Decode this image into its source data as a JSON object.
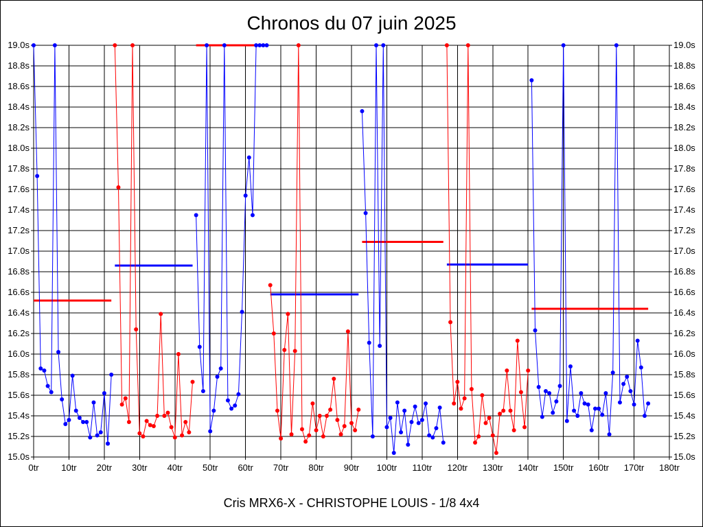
{
  "page": {
    "title": "Chronos du 07 juin 2025",
    "footer": "Cris MRX6-X - CHRISTOPHE LOUIS - 1/8 4x4"
  },
  "chart_data": {
    "type": "line",
    "title": "Chronos du 07 juin 2025",
    "xlabel": "",
    "ylabel": "",
    "xlim": [
      0,
      180
    ],
    "ylim": [
      15.0,
      19.0
    ],
    "grid": true,
    "x_ticks": [
      "0tr",
      "10tr",
      "20tr",
      "30tr",
      "40tr",
      "50tr",
      "60tr",
      "70tr",
      "80tr",
      "90tr",
      "100tr",
      "110tr",
      "120tr",
      "130tr",
      "140tr",
      "150tr",
      "160tr",
      "170tr",
      "180tr"
    ],
    "y_ticks": [
      "15.0s",
      "15.2s",
      "15.4s",
      "15.6s",
      "15.8s",
      "16.0s",
      "16.2s",
      "16.4s",
      "16.6s",
      "16.8s",
      "17.0s",
      "17.2s",
      "17.4s",
      "17.6s",
      "17.8s",
      "18.0s",
      "18.2s",
      "18.4s",
      "18.6s",
      "18.8s",
      "19.0s"
    ],
    "colors": {
      "blue": "#0000ff",
      "red": "#ff0000",
      "grid": "#000000"
    },
    "series": [
      {
        "color": "blue",
        "x": [
          0,
          1,
          2,
          3,
          4,
          5,
          6,
          7,
          8,
          9,
          10,
          11,
          12,
          13,
          14,
          15,
          16,
          17,
          18,
          19,
          20,
          21
        ],
        "y": [
          19.0,
          17.73,
          15.86,
          15.84,
          15.69,
          15.63,
          19.0,
          16.02,
          15.56,
          15.32,
          15.36,
          15.79,
          15.45,
          15.38,
          15.34,
          15.34,
          15.19,
          15.53,
          15.21,
          15.24,
          15.62,
          15.13
        ]
      },
      {
        "color": "blue",
        "x": [
          21,
          22
        ],
        "y": [
          15.13,
          15.8
        ]
      },
      {
        "color": "red",
        "x": [
          23,
          24,
          25,
          26,
          27,
          28,
          29,
          30,
          31,
          32,
          33,
          34,
          35,
          36,
          37,
          38,
          39,
          40,
          41,
          42,
          43,
          44,
          45
        ],
        "y": [
          19.0,
          17.62,
          15.51,
          15.57,
          15.34,
          19.0,
          16.24,
          15.23,
          15.2,
          15.35,
          15.31,
          15.3,
          15.4,
          16.39,
          15.4,
          15.43,
          15.29,
          15.19,
          16.0,
          15.21,
          15.34,
          15.24,
          15.73
        ]
      },
      {
        "color": "blue",
        "x": [
          46,
          47,
          48,
          49,
          50,
          51,
          52,
          53,
          54,
          55,
          56,
          57,
          58,
          59,
          60,
          61,
          62,
          63,
          64,
          65,
          66
        ],
        "y": [
          17.35,
          16.07,
          15.64,
          19.0,
          15.25,
          15.45,
          15.78,
          15.86,
          19.0,
          15.55,
          15.47,
          15.5,
          15.61,
          16.41,
          17.54,
          17.91,
          17.35,
          19.0,
          19.0,
          19.0,
          19.0
        ]
      },
      {
        "color": "red",
        "x": [
          67,
          68,
          69,
          70,
          71,
          72,
          73,
          74,
          75,
          76,
          77,
          78,
          79,
          80,
          81,
          82,
          83,
          84,
          85,
          86,
          87,
          88,
          89,
          90,
          91,
          92
        ],
        "y": [
          16.67,
          16.2,
          15.45,
          15.18,
          16.04,
          16.39,
          15.22,
          16.03,
          19.0,
          15.27,
          15.15,
          15.21,
          15.52,
          15.26,
          15.4,
          15.2,
          15.4,
          15.46,
          15.76,
          15.36,
          15.22,
          15.3,
          16.22,
          15.33,
          15.26,
          15.46
        ]
      },
      {
        "color": "blue",
        "x": [
          93,
          94,
          95,
          96,
          97,
          98,
          99,
          100,
          101,
          102,
          103,
          104,
          105,
          106,
          107,
          108,
          109,
          110,
          111,
          112,
          113,
          114,
          115,
          116
        ],
        "y": [
          18.36,
          17.37,
          16.11,
          15.2,
          19.0,
          16.08,
          19.0,
          15.29,
          15.38,
          15.04,
          15.53,
          15.24,
          15.45,
          15.12,
          15.34,
          15.49,
          15.33,
          15.36,
          15.52,
          15.21,
          15.19,
          15.28,
          15.48,
          15.14
        ]
      },
      {
        "color": "red",
        "x": [
          117,
          118,
          119,
          120,
          121,
          122,
          123,
          124,
          125,
          126,
          127,
          128,
          129,
          130,
          131,
          132,
          133,
          134,
          135,
          136,
          137,
          138,
          139,
          140
        ],
        "y": [
          19.0,
          16.31,
          15.52,
          15.73,
          15.47,
          15.57,
          19.0,
          15.66,
          15.14,
          15.2,
          15.6,
          15.33,
          15.38,
          15.21,
          15.04,
          15.42,
          15.45,
          15.84,
          15.45,
          15.26,
          16.13,
          15.63,
          15.29,
          15.84
        ]
      },
      {
        "color": "blue",
        "x": [
          141,
          142,
          143,
          144,
          145,
          146,
          147,
          148,
          149,
          150,
          151,
          152,
          153,
          154,
          155,
          156,
          157,
          158,
          159,
          160,
          161,
          162,
          163,
          164,
          165,
          166,
          167,
          168,
          169,
          170,
          171,
          172,
          173,
          174
        ],
        "y": [
          18.66,
          16.23,
          15.68,
          15.39,
          15.64,
          15.62,
          15.43,
          15.54,
          15.69,
          19.0,
          15.35,
          15.88,
          15.45,
          15.4,
          15.62,
          15.52,
          15.51,
          15.26,
          15.47,
          15.47,
          15.41,
          15.62,
          15.22,
          15.82,
          19.0,
          15.53,
          15.71,
          15.78,
          15.64,
          15.51,
          16.13,
          15.87,
          15.4,
          15.52
        ]
      }
    ],
    "averages": [
      {
        "color": "red",
        "x": [
          0,
          22
        ],
        "y": 16.52
      },
      {
        "color": "blue",
        "x": [
          23,
          45
        ],
        "y": 16.86
      },
      {
        "color": "red",
        "x": [
          46,
          66
        ],
        "y": 19.0
      },
      {
        "color": "blue",
        "x": [
          67,
          92
        ],
        "y": 16.58
      },
      {
        "color": "red",
        "x": [
          93,
          116
        ],
        "y": 17.09
      },
      {
        "color": "blue",
        "x": [
          117,
          140
        ],
        "y": 16.87
      },
      {
        "color": "red",
        "x": [
          141,
          174
        ],
        "y": 16.44
      }
    ]
  }
}
